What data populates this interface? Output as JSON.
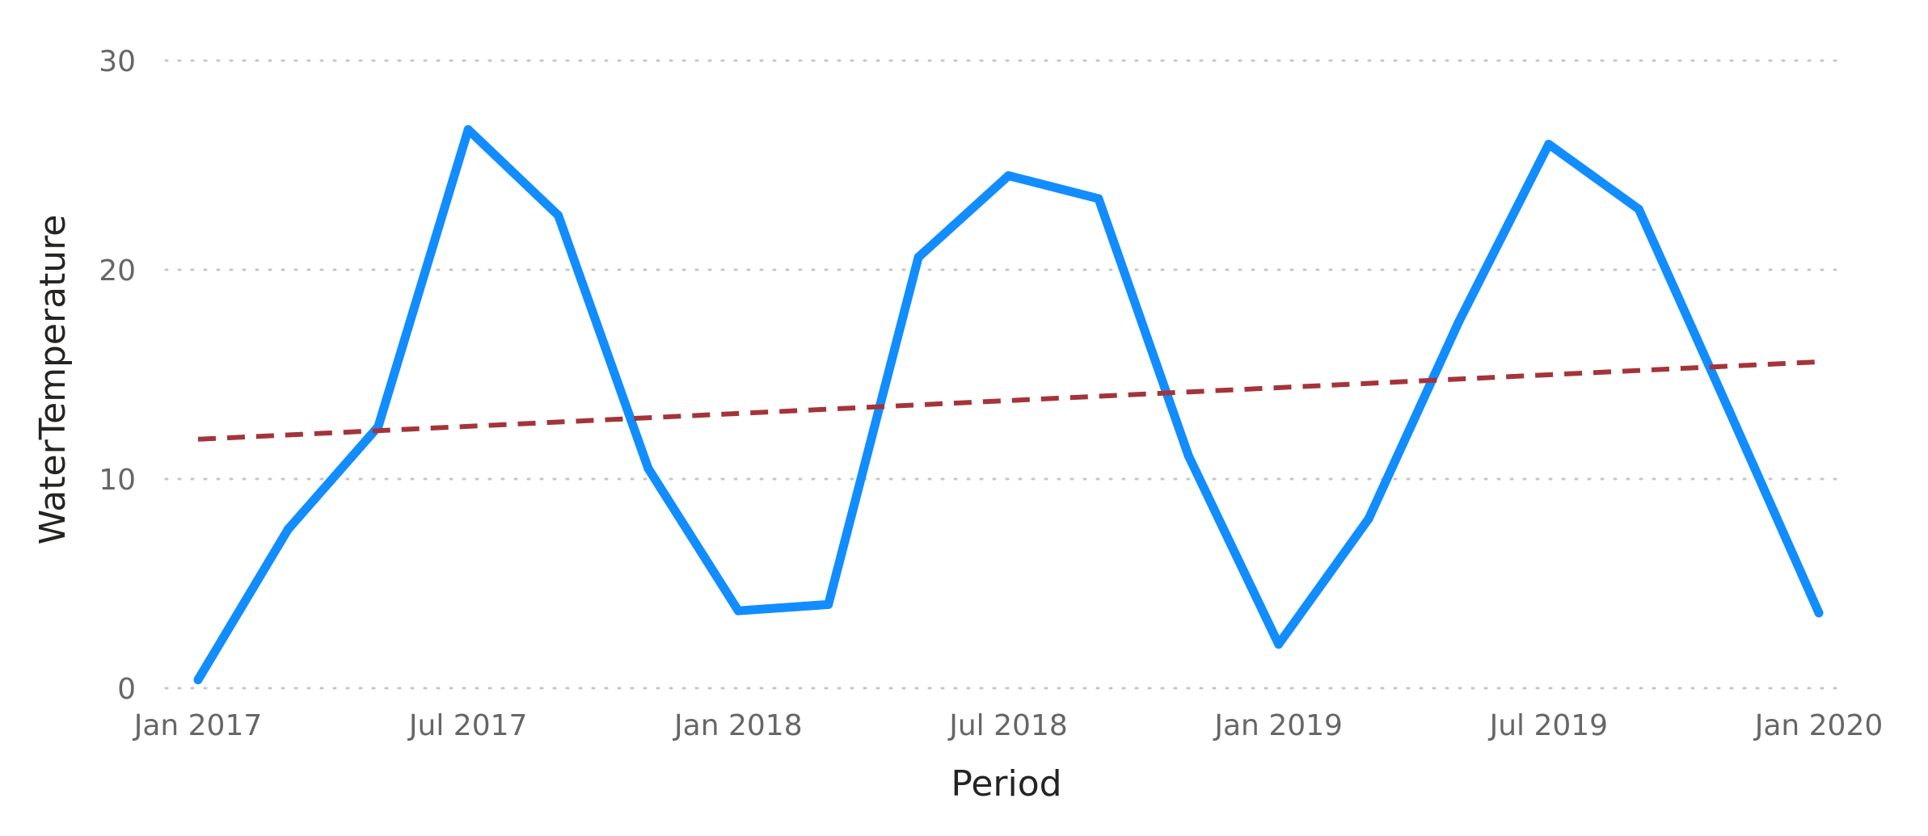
{
  "chart_data": {
    "type": "line",
    "xlabel": "Period",
    "ylabel": "WaterTemperature",
    "ylim": [
      0,
      30
    ],
    "yticks": [
      0,
      10,
      20,
      30
    ],
    "xlim": [
      "2017-01",
      "2020-01"
    ],
    "xticks": [
      {
        "date": "2017-01",
        "label": "Jan 2017"
      },
      {
        "date": "2017-07",
        "label": "Jul 2017"
      },
      {
        "date": "2018-01",
        "label": "Jan 2018"
      },
      {
        "date": "2018-07",
        "label": "Jul 2018"
      },
      {
        "date": "2019-01",
        "label": "Jan 2019"
      },
      {
        "date": "2019-07",
        "label": "Jul 2019"
      },
      {
        "date": "2020-01",
        "label": "Jan 2020"
      }
    ],
    "grid": true,
    "series": [
      {
        "style": "solid",
        "color": "#118DFF",
        "points": [
          {
            "x": "2017-01",
            "y": 0.4
          },
          {
            "x": "2017-03",
            "y": 7.6
          },
          {
            "x": "2017-05",
            "y": 12.5
          },
          {
            "x": "2017-07",
            "y": 26.7
          },
          {
            "x": "2017-09",
            "y": 22.6
          },
          {
            "x": "2017-11",
            "y": 10.5
          },
          {
            "x": "2018-01",
            "y": 3.7
          },
          {
            "x": "2018-03",
            "y": 4.0
          },
          {
            "x": "2018-05",
            "y": 20.6
          },
          {
            "x": "2018-07",
            "y": 24.5
          },
          {
            "x": "2018-09",
            "y": 23.4
          },
          {
            "x": "2018-11",
            "y": 11.1
          },
          {
            "x": "2019-01",
            "y": 2.1
          },
          {
            "x": "2019-03",
            "y": 8.1
          },
          {
            "x": "2019-05",
            "y": 17.5
          },
          {
            "x": "2019-07",
            "y": 26.0
          },
          {
            "x": "2019-09",
            "y": 22.9
          },
          {
            "x": "2019-11",
            "y": 13.3
          },
          {
            "x": "2020-01",
            "y": 3.6
          }
        ]
      },
      {
        "style": "dashed",
        "color": "#A4343A",
        "points": [
          {
            "x": "2017-01",
            "y": 11.9
          },
          {
            "x": "2020-01",
            "y": 15.6
          }
        ]
      }
    ]
  }
}
